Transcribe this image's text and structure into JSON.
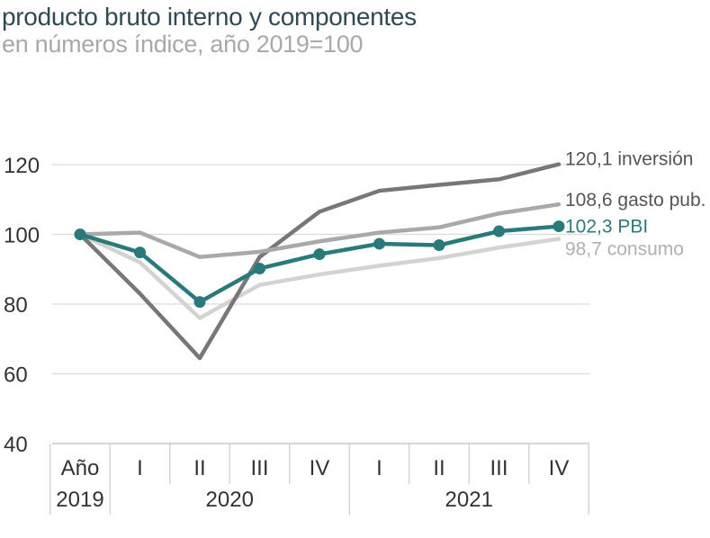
{
  "chart_data": {
    "type": "line",
    "title": "producto bruto interno y componentes",
    "subtitle": "en números índice, año 2019=100",
    "categories": [
      "Año 2019",
      "I",
      "II",
      "III",
      "IV",
      "I",
      "II",
      "III",
      "IV"
    ],
    "year_labels": [
      {
        "label": "Año",
        "label2": "2019"
      },
      {
        "label": "2020"
      },
      {
        "label": "2021"
      }
    ],
    "ylim": [
      40,
      120
    ],
    "yticks": [
      "40",
      "60",
      "80",
      "100",
      "120"
    ],
    "ytick_values": [
      40,
      60,
      80,
      100,
      120
    ],
    "grid": true,
    "series": [
      {
        "name": "consumo",
        "end_label": "98,7 consumo",
        "color": "#d3d3d3",
        "markers": false,
        "values": [
          100,
          92,
          76,
          85.5,
          88.5,
          91,
          93.2,
          96.2,
          98.7
        ]
      },
      {
        "name": "inversión",
        "end_label": "120,1 inversión",
        "color": "#777777",
        "markers": false,
        "values": [
          100,
          83,
          64.5,
          93.5,
          106.5,
          112.5,
          114.2,
          115.8,
          120.1
        ]
      },
      {
        "name": "gasto pub.",
        "end_label": "108,6 gasto pub.",
        "color": "#a9a9a9",
        "markers": false,
        "values": [
          100,
          100.5,
          93.5,
          95,
          98,
          100.5,
          102,
          106,
          108.6
        ]
      },
      {
        "name": "PBI",
        "end_label": "102,3 PBI",
        "color": "#2a7a7c",
        "markers": true,
        "values": [
          100,
          94.8,
          80.6,
          90.2,
          94.3,
          97.3,
          96.9,
          100.9,
          102.3
        ]
      }
    ]
  }
}
